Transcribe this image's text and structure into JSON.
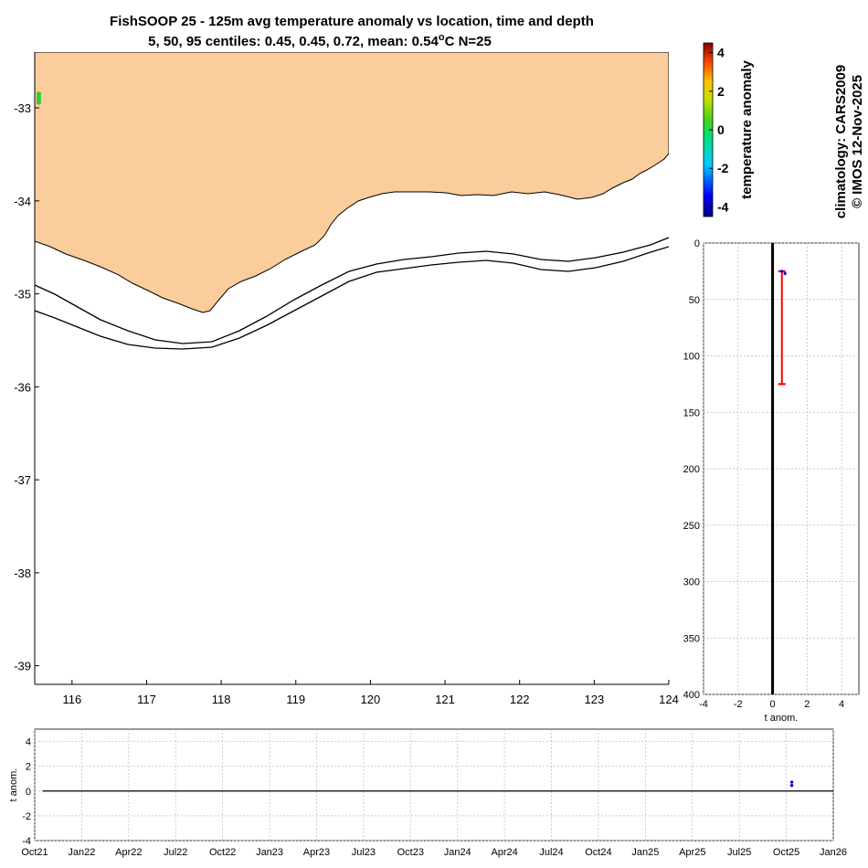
{
  "header": {
    "title_line1": "FishSOOP 25 - 125m avg temperature anomaly vs location, time and depth",
    "title_line2_prefix": "5, 50, 95 centiles: 0.45, 0.45, 0.72, mean: 0.54",
    "title_line2_degree": "o",
    "title_line2_suffix": "C N=25"
  },
  "side_labels": {
    "climatology": "climatology: CARS2009",
    "copyright": "© IMOS 12-Nov-2025"
  },
  "colors": {
    "land": "#FBCC9C",
    "coast": "#000000",
    "grid": "#b8b8c8",
    "mean_line": "#000000",
    "error_bar": "#ff0000",
    "marker": "#0000cc",
    "map_marker": "#33cc33"
  },
  "chart_data": [
    {
      "id": "map",
      "type": "scatter",
      "title": "location",
      "xlim": [
        115.5,
        124
      ],
      "ylim": [
        -39.2,
        -32.4
      ],
      "x_ticks": [
        116,
        117,
        118,
        119,
        120,
        121,
        122,
        123,
        124
      ],
      "y_ticks": [
        -33,
        -34,
        -35,
        -36,
        -37,
        -38,
        -39
      ],
      "points": [
        {
          "lon": 115.53,
          "lat": -32.85,
          "anom": 0.45
        },
        {
          "lon": 115.53,
          "lat": -32.88,
          "anom": 0.45
        },
        {
          "lon": 115.53,
          "lat": -32.91,
          "anom": 0.72
        },
        {
          "lon": 115.53,
          "lat": -32.94,
          "anom": 0.45
        }
      ]
    },
    {
      "id": "colorbar",
      "type": "heatmap",
      "label": "temperature anomaly",
      "range": [
        -4.5,
        4.5
      ],
      "ticks": [
        4,
        2,
        0,
        -2,
        -4
      ]
    },
    {
      "id": "depth",
      "type": "scatter",
      "xlabel": "t anom.",
      "xlim": [
        -4,
        5
      ],
      "ylim": [
        0,
        400
      ],
      "y_reversed": true,
      "x_ticks": [
        -4,
        -2,
        0,
        2,
        4
      ],
      "y_ticks": [
        0,
        50,
        100,
        150,
        200,
        250,
        300,
        350,
        400
      ],
      "mean_line_x": 0,
      "error_bar": {
        "x": 0.54,
        "depth_top": 25,
        "depth_bottom": 125
      },
      "points": [
        {
          "x": 0.54,
          "depth": 25
        },
        {
          "x": 0.72,
          "depth": 27
        }
      ]
    },
    {
      "id": "timeseries",
      "type": "scatter",
      "ylabel": "t anom.",
      "xlim_month_index": [
        0,
        51
      ],
      "ylim": [
        -4,
        5
      ],
      "y_ticks": [
        4,
        2,
        0,
        -2,
        -4
      ],
      "x_tick_labels": [
        "Oct21",
        "Jan22",
        "Apr22",
        "Jul22",
        "Oct22",
        "Jan23",
        "Apr23",
        "Jul23",
        "Oct23",
        "Jan24",
        "Apr24",
        "Jul24",
        "Oct24",
        "Jan25",
        "Apr25",
        "Jul25",
        "Oct25",
        "Jan26"
      ],
      "baseline": 0,
      "points": [
        {
          "month": 48.35,
          "value": 0.45
        },
        {
          "month": 48.35,
          "value": 0.72
        }
      ]
    }
  ]
}
